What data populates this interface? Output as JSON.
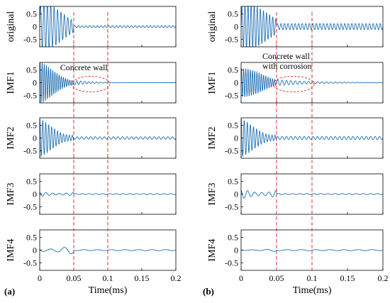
{
  "colors": {
    "signal": "#1f6fb4",
    "marker": "#d0342c",
    "axis": "#000000"
  },
  "chart_data": [
    {
      "panel_label": "(a)",
      "type": "line",
      "xlabel": "Time(ms)",
      "xlim": [
        0,
        0.2
      ],
      "xticks": [
        "0",
        "0.05",
        "0.1",
        "0.15",
        "0.2"
      ],
      "markers_x": [
        0.05,
        0.1
      ],
      "annotation": {
        "text": [
          "Concrete wall"
        ],
        "ellipse_x": [
          0.05,
          0.1
        ]
      },
      "series": [
        {
          "name": "original",
          "ylim": [
            -0.8,
            0.8
          ],
          "yticks": [
            "0.5",
            "0",
            "-0.5"
          ],
          "amp": 1.5,
          "decay": 30,
          "freq": 200,
          "tail": 0.04,
          "tailFreq": 180
        },
        {
          "name": "IMF1",
          "ylim": [
            -0.8,
            0.8
          ],
          "yticks": [
            "0.5",
            "0",
            "-0.5"
          ],
          "amp": 0.9,
          "decay": 28,
          "freq": 320,
          "tail": 0.1,
          "tailFreq": 170,
          "tailDecay": 40
        },
        {
          "name": "IMF2",
          "ylim": [
            -0.8,
            0.8
          ],
          "yticks": [
            "0.5",
            "0",
            "-0.5"
          ],
          "amp": 0.8,
          "decay": 8,
          "freq": 230,
          "tail": 0.05,
          "tailFreq": 150
        },
        {
          "name": "IMF3",
          "ylim": [
            -0.8,
            0.8
          ],
          "yticks": [
            "0.5",
            "0",
            "-0.5"
          ],
          "amp": 0.15,
          "decay": 0,
          "freq": 100,
          "tail": 0.02,
          "tailFreq": 100
        },
        {
          "name": "IMF4",
          "ylim": [
            -0.8,
            0.8
          ],
          "yticks": [
            "0.5",
            "0",
            "-0.5"
          ],
          "amp": 0.25,
          "decay": 6,
          "freq": 50,
          "tail": 0.02,
          "tailFreq": 50
        }
      ]
    },
    {
      "panel_label": "(b)",
      "type": "line",
      "xlabel": "Time(ms)",
      "xlim": [
        0,
        0.2
      ],
      "xticks": [
        "0",
        "0.05",
        "0.1",
        "0.15",
        "0.2"
      ],
      "markers_x": [
        0.05,
        0.1
      ],
      "annotation": {
        "text": [
          "Concrete wall",
          "with corrosion"
        ],
        "ellipse_x": [
          0.048,
          0.1
        ]
      },
      "series": [
        {
          "name": "original",
          "ylim": [
            -0.8,
            0.8
          ],
          "yticks": [
            "0.5",
            "0",
            "-0.5"
          ],
          "amp": 1.3,
          "decay": 22,
          "freq": 230,
          "tail": 0.12,
          "tailFreq": 200
        },
        {
          "name": "IMF1",
          "ylim": [
            -0.8,
            0.8
          ],
          "yticks": [
            "0.5",
            "0",
            "-0.5"
          ],
          "amp": 0.6,
          "decay": 10,
          "freq": 320,
          "tail": 0.12,
          "tailFreq": 160,
          "tailDecay": 20
        },
        {
          "name": "IMF2",
          "ylim": [
            -0.8,
            0.8
          ],
          "yticks": [
            "0.5",
            "0",
            "-0.5"
          ],
          "amp": 0.8,
          "decay": 8,
          "freq": 230,
          "tail": 0.06,
          "tailFreq": 160
        },
        {
          "name": "IMF3",
          "ylim": [
            -0.8,
            0.8
          ],
          "yticks": [
            "0.5",
            "0",
            "-0.5"
          ],
          "amp": 0.3,
          "decay": 0,
          "freq": 100,
          "tail": 0.02,
          "tailFreq": 100
        },
        {
          "name": "IMF4",
          "ylim": [
            -0.8,
            0.8
          ],
          "yticks": [
            "0.5",
            "0",
            "-0.5"
          ],
          "amp": 0.06,
          "decay": 0,
          "freq": 50,
          "tail": 0.02,
          "tailFreq": 50
        }
      ]
    }
  ]
}
